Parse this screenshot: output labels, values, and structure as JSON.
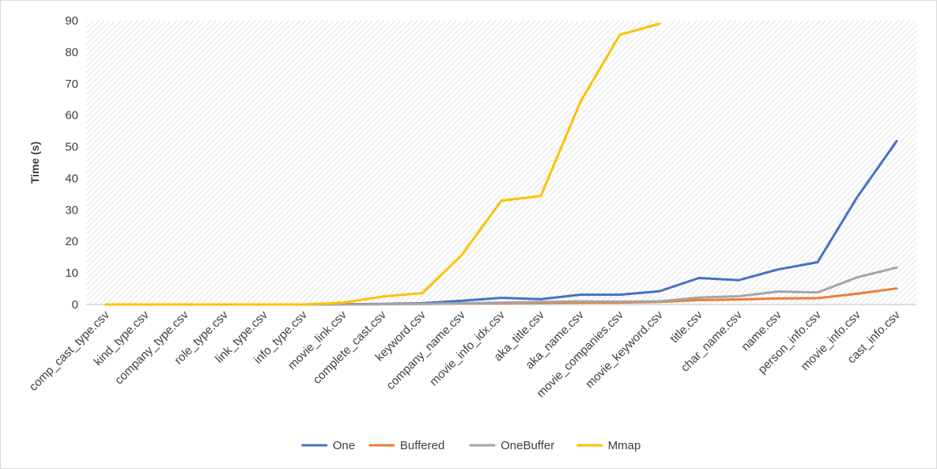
{
  "chart_data": {
    "type": "line",
    "title": "",
    "xlabel": "",
    "ylabel": "Time (s)",
    "ylim": [
      0,
      90
    ],
    "yticks": [
      0,
      10,
      20,
      30,
      40,
      50,
      60,
      70,
      80,
      90
    ],
    "grid": false,
    "legend_position": "bottom",
    "categories": [
      "comp_cast_type.csv",
      "kind_type.csv",
      "company_type.csv",
      "role_type.csv",
      "link_type.csv",
      "info_type.csv",
      "movie_link.csv",
      "complete_cast.csv",
      "keyword.csv",
      "company_name.csv",
      "movie_info_idx.csv",
      "aka_title.csv",
      "aka_name.csv",
      "movie_companies.csv",
      "movie_keyword.csv",
      "title.csv",
      "char_name.csv",
      "name.csv",
      "person_info.csv",
      "movie_info.csv",
      "cast_info.csv"
    ],
    "series": [
      {
        "name": "One",
        "color": "#4472C4",
        "values": [
          0,
          0,
          0,
          0,
          0,
          0,
          0.1,
          0.2,
          0.4,
          1.2,
          2.1,
          1.7,
          3.1,
          3.1,
          4.2,
          8.4,
          7.7,
          11.1,
          13.4,
          34.0,
          51.8
        ]
      },
      {
        "name": "Buffered",
        "color": "#ED7D31",
        "values": [
          0,
          0,
          0,
          0,
          0,
          0,
          0,
          0.1,
          0.2,
          0.3,
          0.4,
          0.5,
          0.6,
          0.6,
          0.8,
          1.4,
          1.6,
          1.9,
          2.0,
          3.4,
          5.1
        ]
      },
      {
        "name": "OneBuffer",
        "color": "#A5A5A5",
        "values": [
          0,
          0,
          0,
          0,
          0,
          0,
          0,
          0.1,
          0.2,
          0.4,
          0.6,
          0.8,
          1.0,
          0.9,
          1.0,
          2.2,
          2.6,
          4.1,
          3.8,
          8.6,
          11.7
        ]
      },
      {
        "name": "Mmap",
        "color": "#FFC000",
        "values": [
          0,
          0,
          0,
          0,
          0,
          0,
          0.6,
          2.5,
          3.6,
          15.7,
          32.9,
          34.4,
          64.2,
          85.5,
          89.0,
          null,
          null,
          null,
          null,
          null,
          null
        ]
      }
    ]
  }
}
